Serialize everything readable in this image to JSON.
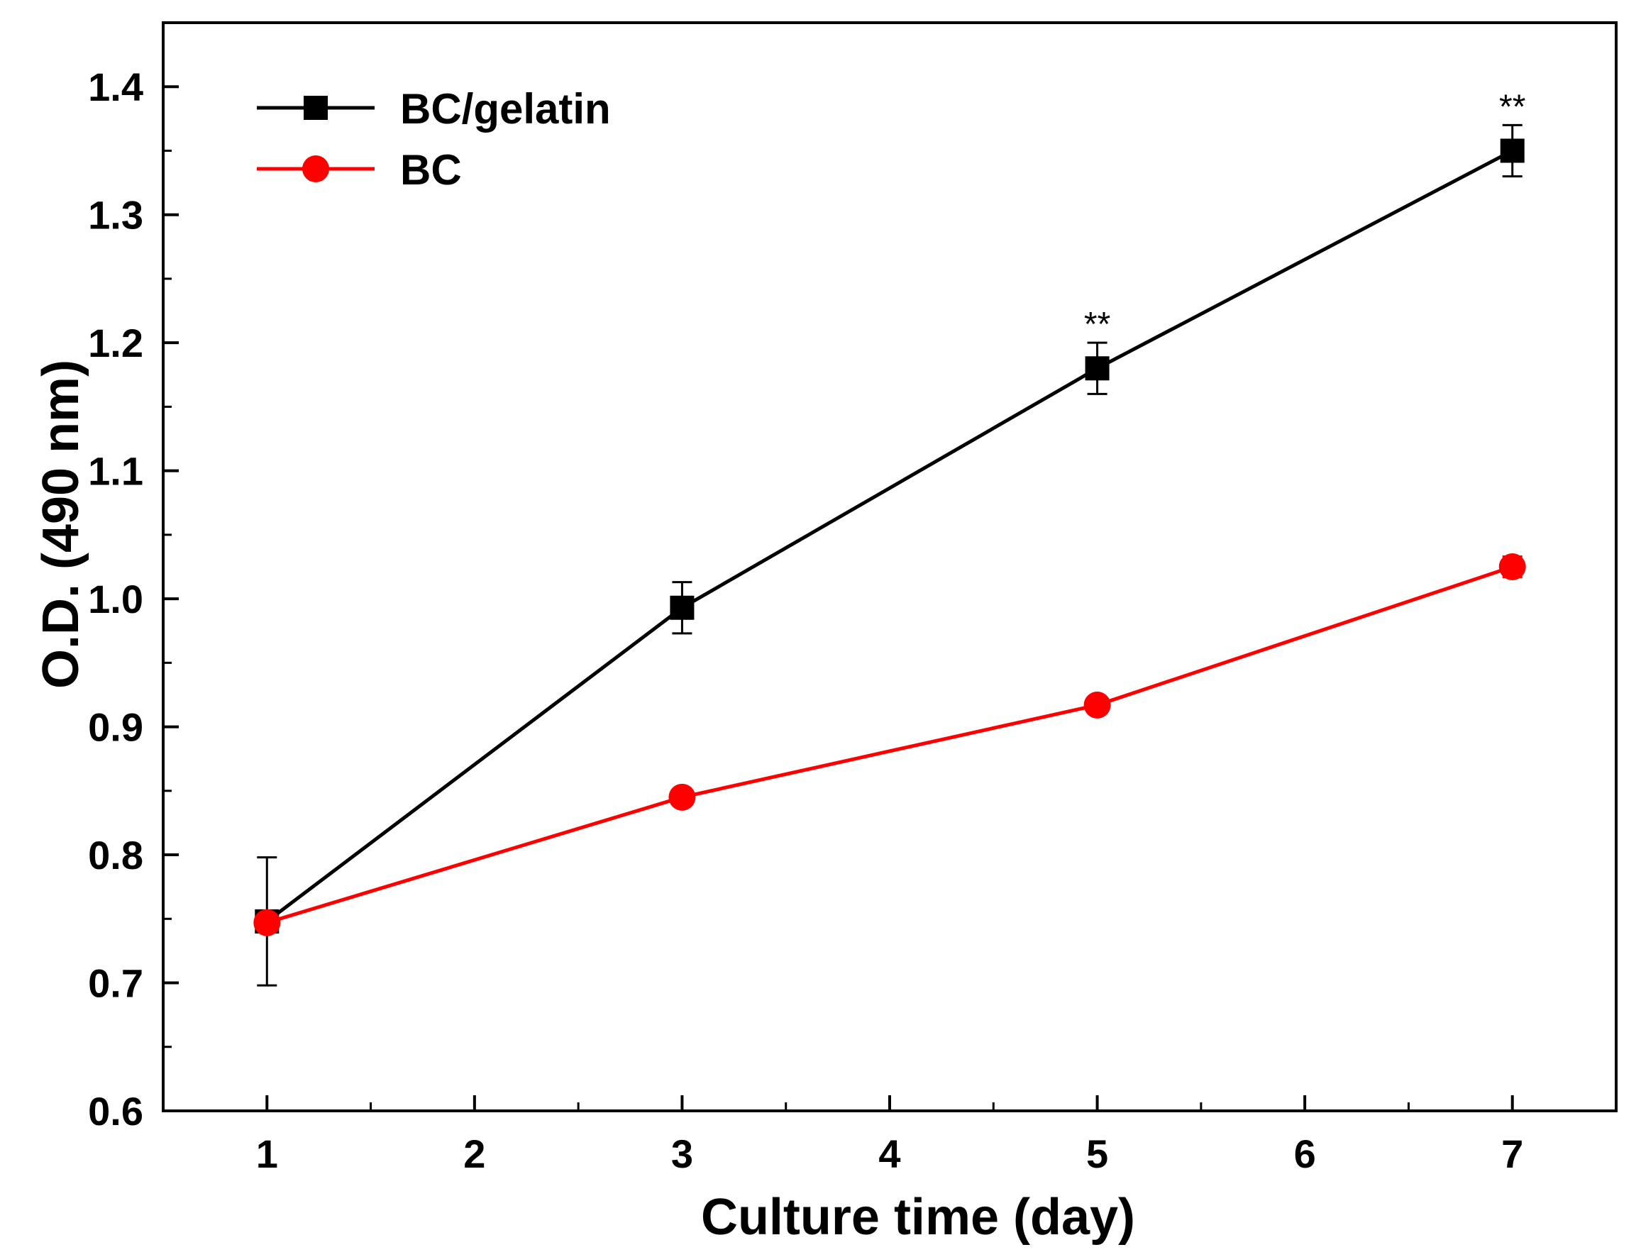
{
  "chart_data": {
    "type": "line",
    "title": "",
    "xlabel": "Culture time (day)",
    "ylabel": "O.D. (490 nm)",
    "xlim": [
      0.5,
      7.5
    ],
    "ylim": [
      0.6,
      1.45
    ],
    "x_ticks": [
      1,
      2,
      3,
      4,
      5,
      6,
      7
    ],
    "x_tick_labels": [
      "1",
      "2",
      "3",
      "4",
      "5",
      "6",
      "7"
    ],
    "y_ticks": [
      0.6,
      0.7,
      0.8,
      0.9,
      1.0,
      1.1,
      1.2,
      1.3,
      1.4
    ],
    "y_tick_labels": [
      "0.6",
      "0.7",
      "0.8",
      "0.9",
      "1.0",
      "1.1",
      "1.2",
      "1.3",
      "1.4"
    ],
    "grid": false,
    "legend_position": "top-left",
    "series": [
      {
        "name": "BC/gelatin",
        "color": "#000000",
        "marker": "square",
        "x": [
          1,
          3,
          5,
          7
        ],
        "y": [
          0.748,
          0.993,
          1.18,
          1.35
        ],
        "error": [
          0.05,
          0.02,
          0.02,
          0.02
        ]
      },
      {
        "name": "BC",
        "color": "#ff0000",
        "marker": "circle",
        "x": [
          1,
          3,
          5,
          7
        ],
        "y": [
          0.747,
          0.845,
          0.917,
          1.025
        ],
        "error": [
          0.0,
          0.0,
          0.0,
          0.008
        ]
      }
    ],
    "annotations": [
      {
        "text": "**",
        "x": 5,
        "y": 1.2
      },
      {
        "text": "**",
        "x": 7,
        "y": 1.37
      }
    ]
  }
}
